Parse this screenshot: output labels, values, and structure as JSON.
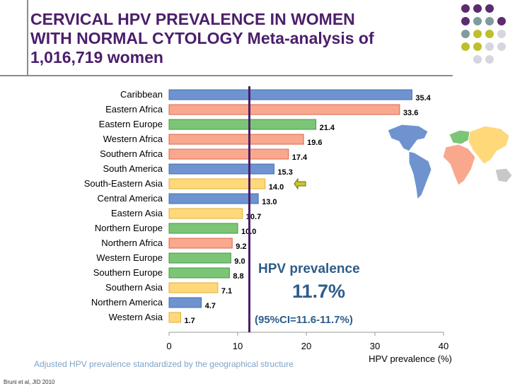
{
  "slide": {
    "title_lines": [
      "CERVICAL HPV PREVALENCE IN WOMEN",
      "WITH NORMAL CYTOLOGY  Meta-analysis of",
      "1,016,719 women"
    ],
    "prevalence_heading": "HPV prevalence",
    "prevalence_value": "11.7%",
    "prevalence_ci": "(95%CI=11.6-11.7%)",
    "footnote": "Adjusted HPV prevalence standardized by the geographical structure",
    "citation": "Bruni et al, JID 2010"
  },
  "colors": {
    "title": "#4B1E6B",
    "decor_purple": "#5B2C6F",
    "decor_teal": "#7F9C9C",
    "decor_yellow": "#BDBF2E",
    "decor_grey": "#D6D6DE",
    "americas": "#6E93CF",
    "africa": "#F9A88E",
    "europe": "#7CC576",
    "asia": "#FFD87A",
    "reference_line": "#4B1E6B",
    "arrow": "#C7C72E"
  },
  "chart_data": {
    "type": "bar",
    "orientation": "horizontal",
    "title": "CERVICAL HPV PREVALENCE IN WOMEN WITH NORMAL CYTOLOGY Meta-analysis of 1,016,719 women",
    "xlabel": "HPV prevalence (%)",
    "ylabel": "",
    "xlim": [
      0,
      40
    ],
    "xticks": [
      0,
      10,
      20,
      30,
      40
    ],
    "reference_line": {
      "value": 11.7,
      "label": "HPV prevalence 11.7%"
    },
    "highlighted_category": "South-Eastern Asia",
    "categories": [
      "Caribbean",
      "Eastern Africa",
      "Eastern Europe",
      "Western Africa",
      "Southern Africa",
      "South America",
      "South-Eastern Asia",
      "Central America",
      "Eastern Asia",
      "Northern Europe",
      "Northern Africa",
      "Western Europe",
      "Southern Europe",
      "Southern Asia",
      "Northern America",
      "Western Asia"
    ],
    "values": [
      35.4,
      33.6,
      21.4,
      19.6,
      17.4,
      15.3,
      14.0,
      13.0,
      10.7,
      10.0,
      9.2,
      9.0,
      8.8,
      7.1,
      4.7,
      1.7
    ],
    "value_labels": [
      "35.4",
      "33.6",
      "21.4",
      "19.6",
      "17.4",
      "15.3",
      "14.0",
      "13.0",
      "10.7",
      "10.0",
      "9.2",
      "9.0",
      "8.8",
      "7.1",
      "4.7",
      "1.7"
    ],
    "regions": [
      "americas",
      "africa",
      "europe",
      "africa",
      "africa",
      "americas",
      "asia",
      "americas",
      "asia",
      "europe",
      "africa",
      "europe",
      "europe",
      "asia",
      "americas",
      "asia"
    ]
  }
}
